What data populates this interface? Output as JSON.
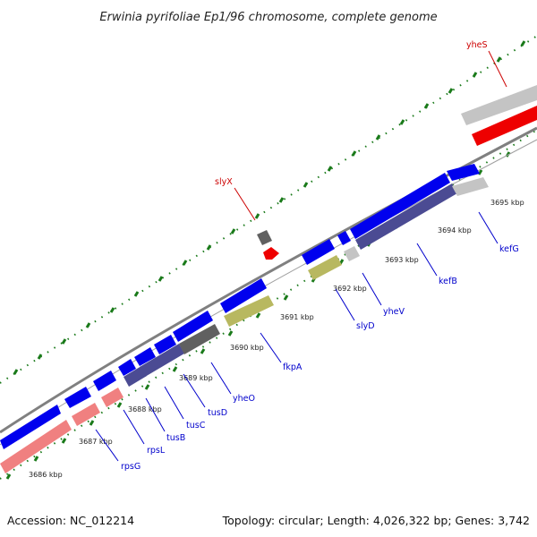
{
  "title": "Erwinia pyrifoliae Ep1/96 chromosome, complete genome",
  "footer": {
    "accession": "Accession: NC_012214",
    "summary": "Topology: circular; Length: 4,026,322 bp; Genes: 3,742"
  },
  "colors": {
    "backbone": "#808080",
    "forward_cds": "#0000ee",
    "forward_cds_alt": "#4b4b93",
    "reverse_cds": "#f08080",
    "reverse_cds_alt": "#ee0000",
    "hypothetical": "#b8b860",
    "pseudo_gray": "#c4c4c4",
    "dark_gray": "#606060",
    "tick_major": "#1a7a1a",
    "label_blue": "#0000cc",
    "label_red": "#cc0000"
  },
  "kbp_labels": [
    "3686 kbp",
    "3687 kbp",
    "3688 kbp",
    "3689 kbp",
    "3690 kbp",
    "3691 kbp",
    "3692 kbp",
    "3693 kbp",
    "3694 kbp",
    "3695 kbp"
  ],
  "gene_labels": [
    "rpsG",
    "rpsL",
    "tusB",
    "tusC",
    "tusD",
    "yheO",
    "fkpA",
    "slyD",
    "yheV",
    "kefB",
    "kefG",
    "slyX",
    "yheS"
  ]
}
